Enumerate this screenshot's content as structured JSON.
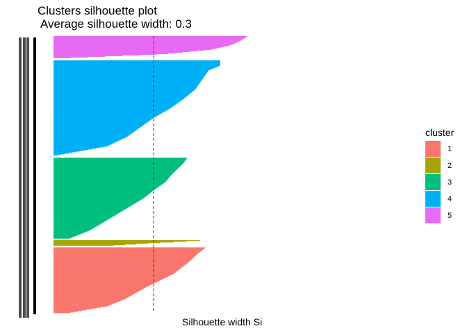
{
  "chart_data": {
    "type": "bar",
    "orientation": "horizontal",
    "title": "Clusters silhouette plot",
    "subtitle": "Average silhouette width: 0.3",
    "xlabel": "Silhouette width Si",
    "ylabel": "",
    "average_silhouette": 0.3,
    "grid": false,
    "x_ticks_shown": false,
    "legend": {
      "title": "cluster",
      "position": "right",
      "entries": [
        {
          "label": "1",
          "color": "#F8766D"
        },
        {
          "label": "2",
          "color": "#A3A500"
        },
        {
          "label": "3",
          "color": "#00BF7D"
        },
        {
          "label": "4",
          "color": "#00B0F6"
        },
        {
          "label": "5",
          "color": "#E76BF3"
        }
      ]
    },
    "reference_line": {
      "value": 0.3,
      "color": "#CC0000",
      "style": "dashed"
    },
    "clusters_bottom_to_top": [
      {
        "cluster": "1",
        "color": "#F8766D",
        "n": 96,
        "profile": [
          [
            0,
            0.455
          ],
          [
            0.1,
            0.43
          ],
          [
            0.2,
            0.41
          ],
          [
            0.3,
            0.385
          ],
          [
            0.4,
            0.36
          ],
          [
            0.5,
            0.32
          ],
          [
            0.6,
            0.28
          ],
          [
            0.7,
            0.245
          ],
          [
            0.8,
            0.21
          ],
          [
            0.9,
            0.16
          ],
          [
            1,
            0.05
          ]
        ]
      },
      {
        "cluster": "2",
        "color": "#A3A500",
        "n": 8,
        "profile": [
          [
            0,
            0.44
          ],
          [
            0.5,
            0.3
          ],
          [
            1,
            0.18
          ]
        ]
      },
      {
        "cluster": "3",
        "color": "#00BF7D",
        "n": 118,
        "profile": [
          [
            0,
            0.4
          ],
          [
            0.06,
            0.39
          ],
          [
            0.1,
            0.38
          ],
          [
            0.2,
            0.355
          ],
          [
            0.3,
            0.335
          ],
          [
            0.4,
            0.3
          ],
          [
            0.5,
            0.27
          ],
          [
            0.6,
            0.23
          ],
          [
            0.7,
            0.19
          ],
          [
            0.8,
            0.15
          ],
          [
            0.9,
            0.11
          ],
          [
            1,
            0.05
          ]
        ]
      },
      {
        "cluster": "4",
        "color": "#00B0F6",
        "n": 140,
        "profile": [
          [
            0,
            0.5
          ],
          [
            0.05,
            0.5
          ],
          [
            0.1,
            0.465
          ],
          [
            0.2,
            0.445
          ],
          [
            0.3,
            0.425
          ],
          [
            0.4,
            0.39
          ],
          [
            0.5,
            0.35
          ],
          [
            0.6,
            0.3
          ],
          [
            0.7,
            0.26
          ],
          [
            0.8,
            0.22
          ],
          [
            0.9,
            0.16
          ],
          [
            1,
            0.0
          ]
        ]
      },
      {
        "cluster": "5",
        "color": "#E76BF3",
        "n": 33,
        "profile": [
          [
            0,
            0.58
          ],
          [
            0.2,
            0.56
          ],
          [
            0.4,
            0.53
          ],
          [
            0.6,
            0.47
          ],
          [
            0.8,
            0.33
          ],
          [
            1,
            0.0
          ]
        ]
      }
    ]
  }
}
